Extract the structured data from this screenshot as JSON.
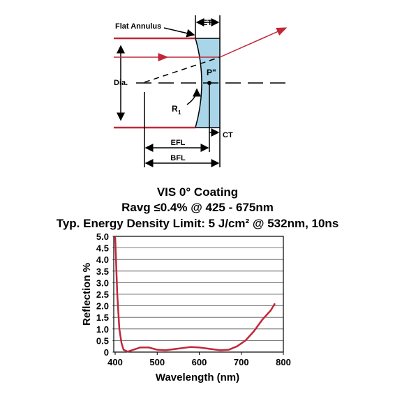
{
  "diagram": {
    "labels": {
      "flat_annulus": "Flat Annulus",
      "et": "ET",
      "dia": "Dia.",
      "p": "P\"",
      "r": "R",
      "r_sub": "1",
      "ct": "CT",
      "efl": "EFL",
      "bfl": "BFL"
    }
  },
  "chart_data": {
    "type": "line",
    "title": "VIS 0° Coating",
    "subtitle": "Ravg ≤0.4% @ 425 - 675nm",
    "subtitle2": "Typ. Energy Density Limit: 5 J/cm² @ 532nm, 10ns",
    "x_label": "Wavelength (nm)",
    "y_label": "Reflection %",
    "x": [
      400,
      405,
      410,
      415,
      420,
      430,
      440,
      460,
      480,
      500,
      520,
      550,
      580,
      600,
      620,
      650,
      670,
      690,
      710,
      730,
      750,
      770,
      780
    ],
    "series": [
      {
        "name": "Reflection",
        "color": "#c0283a",
        "values": [
          5.0,
          2.5,
          1.0,
          0.4,
          0.1,
          0.02,
          0.08,
          0.2,
          0.2,
          0.1,
          0.08,
          0.15,
          0.22,
          0.2,
          0.15,
          0.08,
          0.1,
          0.25,
          0.5,
          0.9,
          1.4,
          1.8,
          2.1
        ]
      }
    ],
    "xlim": [
      400,
      800
    ],
    "xticks": [
      400,
      500,
      600,
      700,
      800
    ],
    "ylim": [
      0,
      5
    ],
    "yticks": [
      0,
      0.5,
      {
        "value": 1,
        "label": "1.0"
      },
      1.5,
      {
        "value": 2,
        "label": "2.0"
      },
      2.5,
      {
        "value": 3,
        "label": "3.0"
      },
      3.5,
      {
        "value": 4,
        "label": "4.0"
      },
      4.5,
      {
        "value": 5,
        "label": "5.0"
      }
    ],
    "grid": true
  }
}
